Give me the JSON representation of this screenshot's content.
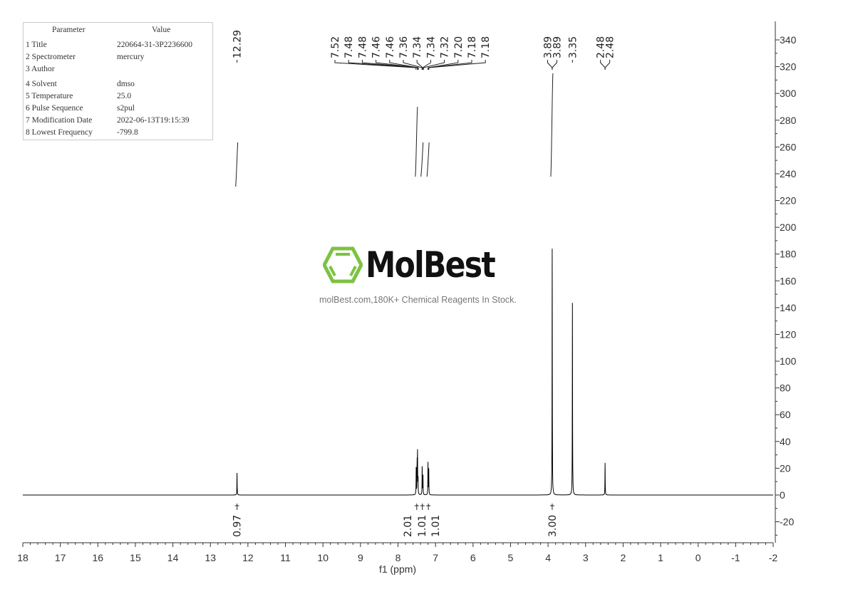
{
  "parameters": {
    "header": [
      "Parameter",
      "Value"
    ],
    "rows": [
      {
        "name": "1 Title",
        "value": "220664-31-3P2236600"
      },
      {
        "name": "2 Spectrometer",
        "value": "mercury"
      },
      {
        "name": "3 Author",
        "value": ""
      },
      {
        "name": "4 Solvent",
        "value": "dmso"
      },
      {
        "name": "5 Temperature",
        "value": "25.0"
      },
      {
        "name": "6 Pulse Sequence",
        "value": "s2pul"
      },
      {
        "name": "7 Modification Date",
        "value": "2022-06-13T19:15:39"
      },
      {
        "name": "8 Lowest Frequency",
        "value": "-799.8"
      }
    ]
  },
  "watermark": {
    "logo_text": "MolBest",
    "tagline": "molBest.com,180K+ Chemical Reagents In Stock.",
    "logo_color": "#7dc242"
  },
  "chart_data": {
    "type": "line",
    "xlabel": "f1 (ppm)",
    "ylabel": "",
    "xlim": [
      18,
      -2
    ],
    "ylim": [
      -35,
      354
    ],
    "x_ticks": [
      "18",
      "17",
      "16",
      "15",
      "14",
      "13",
      "12",
      "11",
      "10",
      "9",
      "8",
      "7",
      "6",
      "5",
      "4",
      "3",
      "2",
      "1",
      "0",
      "-1",
      "-2"
    ],
    "y_ticks": [
      "340",
      "320",
      "300",
      "280",
      "260",
      "240",
      "220",
      "200",
      "180",
      "160",
      "140",
      "120",
      "100",
      "80",
      "60",
      "40",
      "20",
      "0",
      "-20"
    ],
    "y_axis_side": "right",
    "grid": false,
    "line_color": "#000000",
    "peaks": [
      [
        12.29,
        16.5
      ],
      [
        7.515,
        21
      ],
      [
        7.49,
        23
      ],
      [
        7.48,
        30
      ],
      [
        7.465,
        12
      ],
      [
        7.355,
        22
      ],
      [
        7.335,
        15
      ],
      [
        7.2,
        24
      ],
      [
        7.18,
        19
      ],
      [
        3.89,
        184
      ],
      [
        3.35,
        143.5
      ],
      [
        2.48,
        24
      ]
    ],
    "peak_labels": [
      {
        "group": [
          "12.29"
        ],
        "ppm": [
          12.29
        ]
      },
      {
        "group": [
          "7.52",
          "7.48",
          "7.48",
          "7.46",
          "7.46",
          "7.36",
          "7.34",
          "7.34",
          "7.32",
          "7.20",
          "7.18",
          "7.18"
        ],
        "ppm": [
          7.52,
          7.48,
          7.48,
          7.46,
          7.46,
          7.36,
          7.34,
          7.34,
          7.32,
          7.2,
          7.18,
          7.18
        ]
      },
      {
        "group": [
          "3.89",
          "3.89"
        ],
        "ppm": [
          3.89,
          3.89
        ]
      },
      {
        "group": [
          "3.35"
        ],
        "ppm": [
          3.35
        ]
      },
      {
        "group": [
          "2.48",
          "2.48"
        ],
        "ppm": [
          2.48,
          2.48
        ]
      }
    ],
    "integrals": [
      {
        "label": "0.97",
        "ppm": 12.29
      },
      {
        "label": "2.01",
        "ppm": 7.5
      },
      {
        "label": "1.01",
        "ppm": 7.35
      },
      {
        "label": "1.01",
        "ppm": 7.19
      },
      {
        "label": "3.00",
        "ppm": 3.89
      }
    ]
  }
}
